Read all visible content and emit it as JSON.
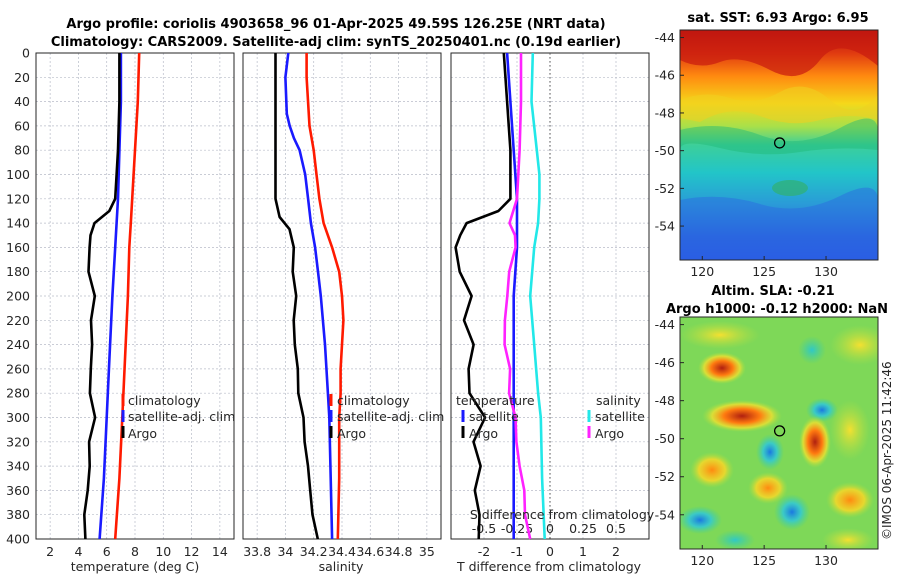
{
  "header": {
    "line1": "Argo profile: coriolis 4903658_96 01-Apr-2025 49.59S 126.25E (NRT data)",
    "line2": "Climatology: CARS2009. Satellite-adj clim: synTS_20250401.nc (0.19d earlier)"
  },
  "copyright": "©IMOS 06-Apr-2025 11:42:46",
  "colors": {
    "climatology": "#ff1a00",
    "satellite": "#1a1aff",
    "argo": "#000000",
    "salinity_satellite": "#22e8e8",
    "salinity_argo": "#ff22ff"
  },
  "chart_data": [
    {
      "id": "temperature",
      "type": "line",
      "xlabel": "temperature (deg C)",
      "ylabel": "",
      "xlim": [
        1,
        15
      ],
      "ylim": [
        400,
        0
      ],
      "xticks": [
        2,
        4,
        6,
        8,
        10,
        12,
        14
      ],
      "yticks": [
        0,
        20,
        40,
        60,
        80,
        100,
        120,
        140,
        160,
        180,
        200,
        220,
        240,
        260,
        280,
        300,
        320,
        340,
        360,
        380,
        400
      ],
      "grid": true,
      "legend": {
        "placement": "right-middle",
        "entries": [
          "climatology",
          "satellite-adj. clim",
          "Argo"
        ]
      },
      "series": [
        {
          "name": "climatology",
          "color": "#ff1a00",
          "depth": [
            0,
            40,
            80,
            120,
            140,
            160,
            200,
            250,
            300,
            350,
            400
          ],
          "values": [
            8.3,
            8.2,
            8.0,
            7.8,
            7.7,
            7.6,
            7.5,
            7.3,
            7.1,
            6.9,
            6.6
          ]
        },
        {
          "name": "satellite-adj. clim",
          "color": "#1a1aff",
          "depth": [
            0,
            40,
            80,
            120,
            140,
            160,
            200,
            250,
            300,
            350,
            400
          ],
          "values": [
            7.0,
            7.0,
            6.9,
            6.8,
            6.7,
            6.6,
            6.4,
            6.2,
            6.0,
            5.8,
            5.5
          ]
        },
        {
          "name": "Argo",
          "color": "#000000",
          "depth": [
            0,
            40,
            80,
            120,
            130,
            140,
            150,
            160,
            180,
            200,
            220,
            240,
            260,
            280,
            300,
            320,
            340,
            360,
            380,
            400
          ],
          "values": [
            6.9,
            6.9,
            6.8,
            6.6,
            6.1,
            5.2,
            4.9,
            4.7,
            4.8,
            5.1,
            4.9,
            5.0,
            4.8,
            4.9,
            5.1,
            4.8,
            4.8,
            4.6,
            4.5,
            4.4
          ]
        }
      ]
    },
    {
      "id": "salinity",
      "type": "line",
      "xlabel": "salinity",
      "ylabel": "",
      "xlim": [
        33.7,
        35.1
      ],
      "ylim": [
        400,
        0
      ],
      "xticks": [
        33.8,
        34,
        34.2,
        34.4,
        34.6,
        34.8,
        35
      ],
      "xticklabels": [
        "33.8",
        "34",
        "34.2",
        "34.4",
        "34.6",
        "34.8",
        "35"
      ],
      "grid": true,
      "legend": {
        "placement": "right-middle",
        "entries": [
          "climatology",
          "satellite-adj. clim",
          "Argo"
        ]
      },
      "series": [
        {
          "name": "climatology",
          "color": "#ff1a00",
          "depth": [
            0,
            20,
            60,
            80,
            100,
            120,
            140,
            160,
            180,
            200,
            220,
            240,
            260,
            280,
            300,
            350,
            400
          ],
          "values": [
            34.15,
            34.15,
            34.17,
            34.2,
            34.22,
            34.24,
            34.27,
            34.33,
            34.38,
            34.4,
            34.41,
            34.4,
            34.39,
            34.39,
            34.38,
            34.38,
            34.37
          ]
        },
        {
          "name": "satellite-adj. clim",
          "color": "#1a1aff",
          "depth": [
            0,
            20,
            50,
            60,
            70,
            80,
            100,
            120,
            140,
            160,
            180,
            200,
            240,
            280,
            300,
            350,
            400
          ],
          "values": [
            34.02,
            34.0,
            34.01,
            34.03,
            34.06,
            34.1,
            34.14,
            34.16,
            34.18,
            34.21,
            34.23,
            34.25,
            34.28,
            34.3,
            34.31,
            34.32,
            34.33
          ]
        },
        {
          "name": "Argo",
          "color": "#000000",
          "depth": [
            0,
            40,
            80,
            100,
            120,
            135,
            145,
            160,
            180,
            200,
            220,
            240,
            260,
            280,
            300,
            320,
            340,
            360,
            380,
            400
          ],
          "values": [
            33.93,
            33.93,
            33.93,
            33.93,
            33.93,
            33.96,
            34.02,
            34.05,
            34.06,
            34.07,
            34.06,
            34.07,
            34.08,
            34.1,
            34.12,
            34.14,
            34.16,
            34.17,
            34.2,
            34.22
          ]
        }
      ]
    },
    {
      "id": "difference",
      "type": "line",
      "xlabel": "T difference from climatology",
      "xlabel_top": "S difference from climatology",
      "xlim": [
        -3,
        3
      ],
      "ylim": [
        400,
        0
      ],
      "xticks": [
        -2,
        -1,
        0,
        1,
        2
      ],
      "xticks_top": [
        -0.5,
        -0.25,
        0,
        0.25,
        0.5
      ],
      "xticklabels_top": [
        "-0.5",
        "-0.25",
        "0",
        "0.25",
        "0.5"
      ],
      "s_scale": 4,
      "grid": true,
      "legend": {
        "temperature_title": "temperature",
        "salinity_title": "salinity",
        "entries": [
          "satellite",
          "Argo"
        ]
      },
      "series": [
        {
          "name": "T satellite",
          "color": "#1a1aff",
          "depth": [
            0,
            40,
            80,
            120,
            140,
            160,
            200,
            250,
            300,
            350,
            400
          ],
          "values": [
            -1.3,
            -1.2,
            -1.1,
            -1.0,
            -1.0,
            -1.0,
            -1.1,
            -1.1,
            -1.1,
            -1.1,
            -1.1
          ]
        },
        {
          "name": "T Argo",
          "color": "#000000",
          "depth": [
            0,
            40,
            80,
            120,
            130,
            140,
            150,
            160,
            180,
            200,
            220,
            240,
            260,
            280,
            300,
            320,
            340,
            360,
            380,
            400
          ],
          "values": [
            -1.4,
            -1.3,
            -1.2,
            -1.2,
            -1.6,
            -2.5,
            -2.7,
            -2.9,
            -2.7,
            -2.4,
            -2.6,
            -2.3,
            -2.5,
            -2.4,
            -2.0,
            -2.3,
            -2.1,
            -2.3,
            -2.1,
            -2.2
          ]
        },
        {
          "name": "S satellite",
          "color": "#22e8e8",
          "depth": [
            0,
            40,
            80,
            100,
            120,
            140,
            160,
            200,
            240,
            280,
            300,
            350,
            400
          ],
          "values": [
            -0.13,
            -0.14,
            -0.1,
            -0.08,
            -0.08,
            -0.09,
            -0.12,
            -0.15,
            -0.12,
            -0.09,
            -0.07,
            -0.06,
            -0.04
          ]
        },
        {
          "name": "S Argo",
          "color": "#ff22ff",
          "depth": [
            0,
            40,
            80,
            120,
            140,
            150,
            160,
            180,
            200,
            220,
            240,
            260,
            280,
            300,
            320,
            340,
            360,
            380,
            400
          ],
          "values": [
            -0.22,
            -0.22,
            -0.23,
            -0.25,
            -0.3,
            -0.26,
            -0.27,
            -0.3,
            -0.33,
            -0.34,
            -0.34,
            -0.31,
            -0.3,
            -0.27,
            -0.25,
            -0.23,
            -0.2,
            -0.18,
            -0.16
          ]
        }
      ]
    },
    {
      "id": "sst_map",
      "type": "heatmap",
      "title": "sat. SST: 6.93 Argo: 6.95",
      "xticks": [
        120,
        125,
        130
      ],
      "yticks": [
        -44,
        -46,
        -48,
        -50,
        -52,
        -54
      ],
      "xlim": [
        118.2,
        134.2
      ],
      "ylim": [
        -55.8,
        -43.6
      ],
      "marker": {
        "lon": 126.25,
        "lat": -49.59
      }
    },
    {
      "id": "sla_map",
      "type": "heatmap",
      "title": "Altim. SLA: -0.21",
      "subtitle": "Argo h1000: -0.12 h2000: NaN",
      "xticks": [
        120,
        125,
        130
      ],
      "yticks": [
        -44,
        -46,
        -48,
        -50,
        -52,
        -54
      ],
      "xlim": [
        118.2,
        134.2
      ],
      "ylim": [
        -55.8,
        -43.6
      ],
      "marker": {
        "lon": 126.25,
        "lat": -49.59
      }
    }
  ]
}
